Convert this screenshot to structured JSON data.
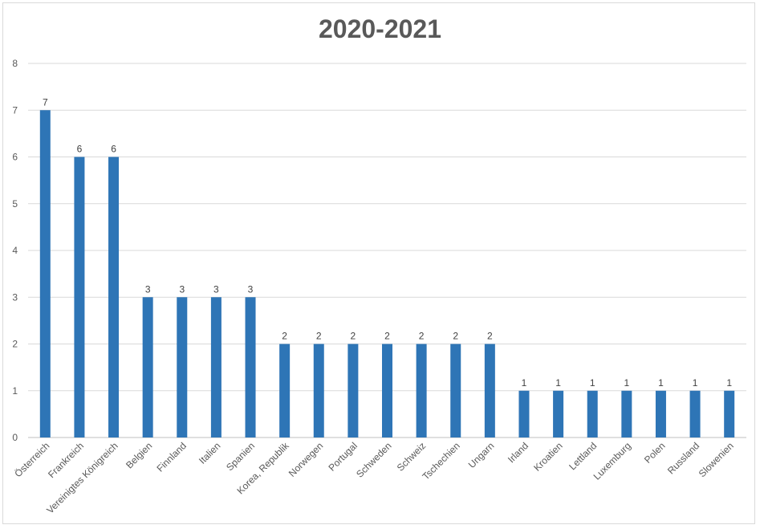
{
  "chart_data": {
    "type": "bar",
    "title": "2020-2021",
    "xlabel": "",
    "ylabel": "",
    "ylim": [
      0,
      8
    ],
    "yticks": [
      0,
      1,
      2,
      3,
      4,
      5,
      6,
      7,
      8
    ],
    "grid": true,
    "bar_color": "#2E75B6",
    "data_labels": true,
    "categories": [
      "Österreich",
      "Frankreich",
      "Vereinigtes Königreich",
      "Belgien",
      "Finnland",
      "Italien",
      "Spanien",
      "Korea, Republik",
      "Norwegen",
      "Portugal",
      "Schweden",
      "Schweiz",
      "Tschechien",
      "Ungarn",
      "Irland",
      "Kroatien",
      "Lettland",
      "Luxemburg",
      "Polen",
      "Russland",
      "Slowenien"
    ],
    "values": [
      7,
      6,
      6,
      3,
      3,
      3,
      3,
      2,
      2,
      2,
      2,
      2,
      2,
      2,
      1,
      1,
      1,
      1,
      1,
      1,
      1
    ]
  }
}
